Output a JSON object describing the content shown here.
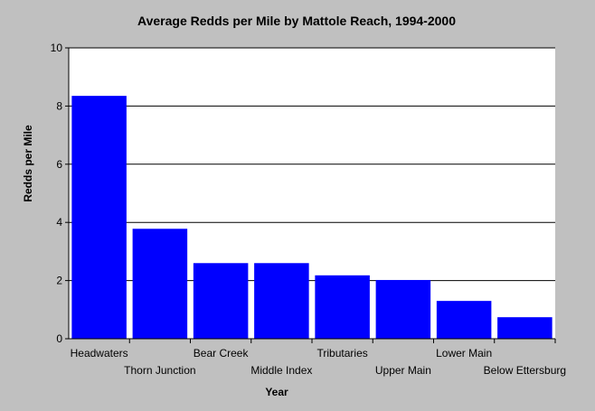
{
  "chart_data": {
    "type": "bar",
    "title": "Average Redds per Mile by Mattole Reach, 1994-2000",
    "xlabel": "Year",
    "ylabel": "Redds per Mile",
    "categories": [
      "Headwaters",
      "Thorn Junction",
      "Bear Creek",
      "Middle Index",
      "Tributaries",
      "Upper Main",
      "Lower Main",
      "Below Ettersburg"
    ],
    "values": [
      8.35,
      3.78,
      2.6,
      2.6,
      2.18,
      2.02,
      1.3,
      0.74
    ],
    "ylim": [
      0,
      10
    ],
    "yticks": [
      "0",
      "2",
      "4",
      "6",
      "8",
      "10"
    ],
    "grid": true,
    "legend": "none",
    "bar_color": "#0000ff",
    "plot_background": "#ffffff",
    "page_background": "#c0c0c0"
  }
}
